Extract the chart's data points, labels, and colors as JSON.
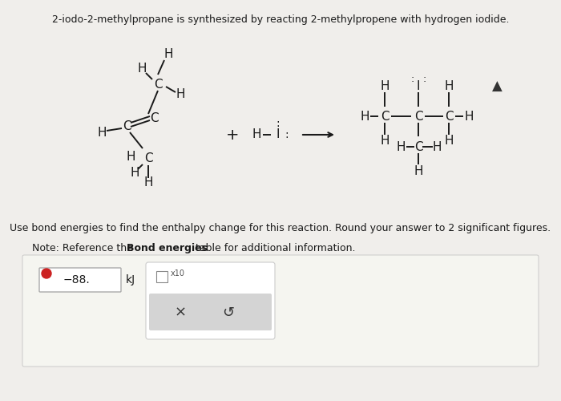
{
  "title": "2-iodo-2-methylpropane is synthesized by reacting 2-methylpropene with hydrogen iodide.",
  "question_text": "Use bond energies to find the enthalpy change for this reaction. Round your answer to 2 significant figures.",
  "note_text": "Note: Reference the ",
  "note_bold": "Bond energies",
  "note_end": " table for additional information.",
  "answer_value": "−88.",
  "answer_unit": "kJ",
  "bg_color": "#f0eeeb",
  "box_bg": "#ffffff",
  "answer_box_bg": "#ffffff",
  "popup_bg": "#e8e8e8"
}
